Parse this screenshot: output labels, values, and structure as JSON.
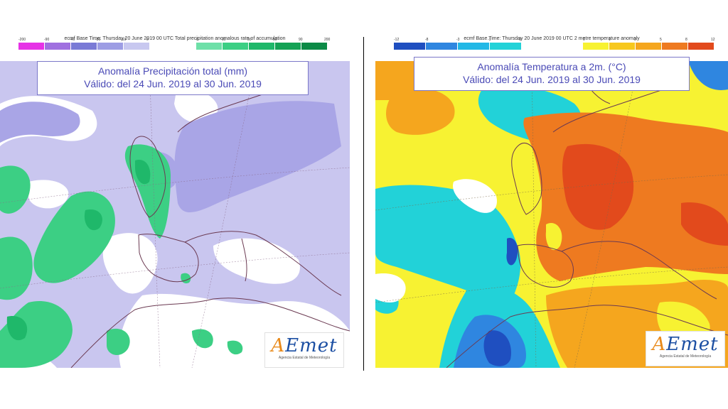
{
  "left": {
    "header_text": "ecmf Base Time: Thursday 20 June 2019 00 UTC Total precipitation anomalous rate of accumulation",
    "legend_ticks_neg": [
      "-200",
      "-90",
      "-40",
      "-30",
      "-10",
      "0"
    ],
    "legend_ticks_pos": [
      "0",
      "10",
      "30",
      "50",
      "90",
      "200"
    ],
    "legend_colors_neg": [
      "#e632e6",
      "#a070e0",
      "#7a7ad6",
      "#9d9de4",
      "#c8c8f0"
    ],
    "legend_colors_pos": [
      "#6ee0a8",
      "#3ccf84",
      "#1fb86a",
      "#14a255",
      "#0c8a46"
    ],
    "title_line1": "Anomalía Precipitación total (mm)",
    "title_line2": "Válido: del 24 Jun. 2019 al 30 Jun. 2019"
  },
  "right": {
    "header_text": "ecmf Base Time: Thursday 20 June 2019 00 UTC 2 metre temperature anomaly",
    "legend_ticks_neg": [
      "-12",
      "-8",
      "-3",
      "-1",
      "0"
    ],
    "legend_ticks_pos": [
      "0",
      "1",
      "3",
      "5",
      "8",
      "12"
    ],
    "legend_colors_neg": [
      "#1f4fc0",
      "#2f86e0",
      "#22b8e6",
      "#22d2d8"
    ],
    "legend_colors_pos": [
      "#f7f232",
      "#f7c81e",
      "#f5a61e",
      "#ee7a20",
      "#e24a1c"
    ],
    "title_line1": "Anomalía Temperatura a 2m. (°C)",
    "title_line2": "Válido: del 24 Jun. 2019 al 30 Jun. 2019"
  },
  "logo": {
    "name_a": "A",
    "name_rest": "Emet",
    "subtitle": "Agencia Estatal de Meteorología"
  },
  "colors": {
    "precip_base": "#c9c6ef",
    "precip_dry": "#a9a5e6",
    "precip_white": "#ffffff",
    "precip_wet": "#3ccf84",
    "precip_wet_dark": "#1fb86a",
    "temp_yellow": "#f7f232",
    "temp_orange_light": "#f5a61e",
    "temp_orange": "#ee7a20",
    "temp_red": "#e24a1c",
    "temp_cyan": "#22d2d8",
    "temp_blue": "#2f86e0",
    "temp_deep_blue": "#1f4fc0",
    "coast": "#6b3a52"
  }
}
